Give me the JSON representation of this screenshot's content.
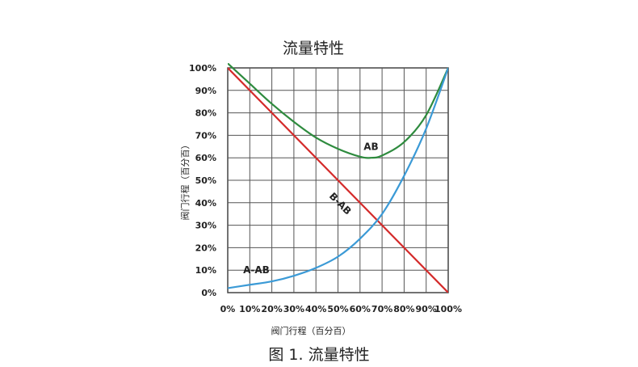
{
  "chart_data": {
    "type": "line",
    "title": "流量特性",
    "xlabel": "阀门行程（百分百）",
    "ylabel": "阀门行程（百分百）",
    "xlim": [
      0,
      100
    ],
    "ylim": [
      0,
      100
    ],
    "grid": true,
    "x_ticks": [
      "0%",
      "10%",
      "20%",
      "30%",
      "40%",
      "50%",
      "60%",
      "70%",
      "80%",
      "90%",
      "100%"
    ],
    "y_ticks": [
      "0%",
      "10%",
      "20%",
      "30%",
      "40%",
      "50%",
      "60%",
      "70%",
      "80%",
      "90%",
      "100%"
    ],
    "series": [
      {
        "name": "AB",
        "color": "#2e8b3e",
        "x": [
          0,
          10,
          20,
          30,
          40,
          50,
          60,
          65,
          70,
          80,
          90,
          100
        ],
        "y": [
          102,
          93,
          84,
          76,
          69,
          64,
          60.5,
          60,
          61,
          67,
          79,
          100
        ]
      },
      {
        "name": "B-AB",
        "color": "#d42a2a",
        "x": [
          0,
          100
        ],
        "y": [
          100,
          0
        ]
      },
      {
        "name": "A-AB",
        "color": "#3b9ad6",
        "x": [
          0,
          10,
          20,
          30,
          40,
          50,
          60,
          70,
          80,
          90,
          100
        ],
        "y": [
          2,
          3.5,
          5,
          7.5,
          11,
          16,
          24,
          35,
          52,
          73,
          100
        ]
      }
    ],
    "annotations": [
      {
        "text": "AB",
        "x": 65,
        "y": 65
      },
      {
        "text": "B-AB",
        "x": 50,
        "y": 40
      },
      {
        "text": "A-AB",
        "x": 13,
        "y": 10
      }
    ]
  },
  "caption": "图 1. 流量特性"
}
